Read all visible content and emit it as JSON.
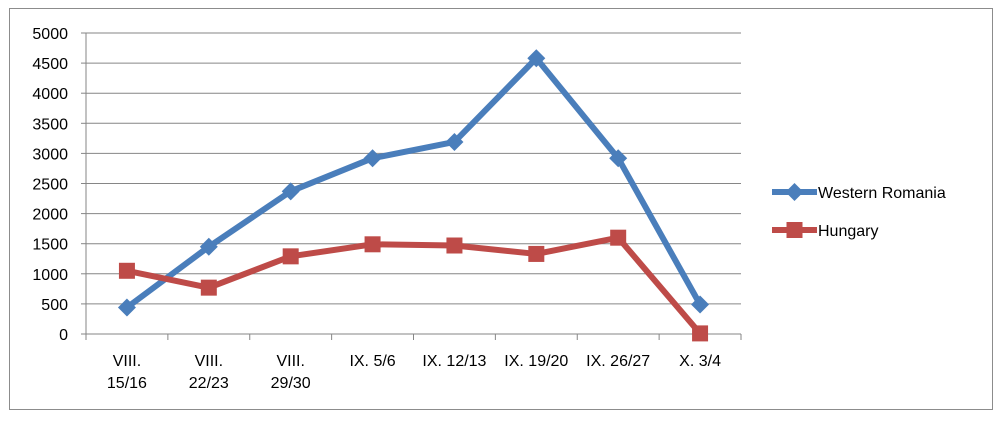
{
  "chart_data": {
    "type": "line",
    "categories": [
      [
        "VIII.",
        "15/16"
      ],
      [
        "VIII.",
        "22/23"
      ],
      [
        "VIII.",
        "29/30"
      ],
      [
        "IX. 5/6"
      ],
      [
        "IX. 12/13"
      ],
      [
        "IX. 19/20"
      ],
      [
        "IX. 26/27"
      ],
      [
        "X. 3/4"
      ]
    ],
    "series": [
      {
        "name": "Western Romania",
        "color": "#4a7ebb",
        "marker": "diamond",
        "values": [
          440,
          1450,
          2370,
          2920,
          3190,
          4580,
          2920,
          490
        ]
      },
      {
        "name": "Hungary",
        "color": "#be4b48",
        "marker": "square",
        "values": [
          1050,
          770,
          1290,
          1490,
          1470,
          1330,
          1600,
          10
        ]
      }
    ],
    "ylim": [
      0,
      5000
    ],
    "yticks": [
      "0",
      "500",
      "1000",
      "1500",
      "2000",
      "2500",
      "3000",
      "3500",
      "4000",
      "4500",
      "5000"
    ],
    "grid": true,
    "legend_position": "right",
    "title": "",
    "xlabel": "",
    "ylabel": ""
  }
}
